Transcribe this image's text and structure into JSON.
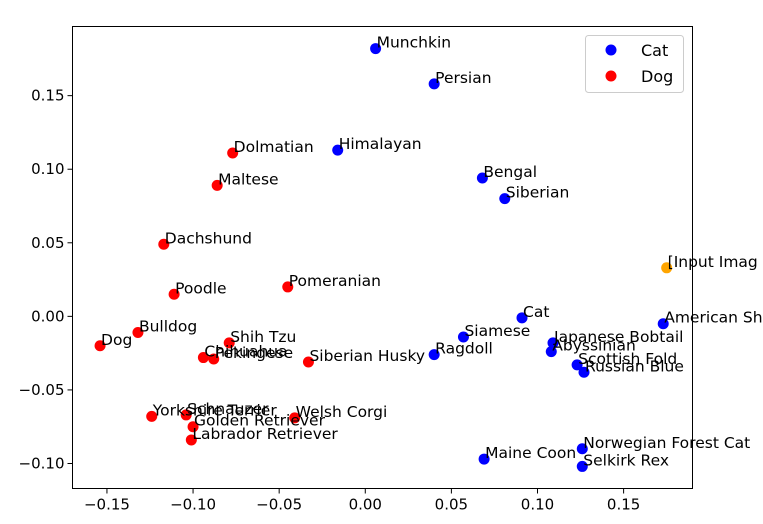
{
  "chart_data": {
    "type": "scatter",
    "title": "",
    "xlabel": "",
    "ylabel": "",
    "xlim": [
      -0.17,
      0.19
    ],
    "ylim": [
      -0.117,
      0.197
    ],
    "grid": false,
    "legend": {
      "position": "top-right",
      "entries": [
        "Cat",
        "Dog"
      ]
    },
    "x_ticks": [
      "−0.15",
      "−0.10",
      "−0.05",
      "0.00",
      "0.05",
      "0.10",
      "0.15"
    ],
    "x_tick_values": [
      -0.15,
      -0.1,
      -0.05,
      0.0,
      0.05,
      0.1,
      0.15
    ],
    "y_ticks": [
      "−0.10",
      "−0.05",
      "0.00",
      "0.05",
      "0.10",
      "0.15"
    ],
    "y_tick_values": [
      -0.1,
      -0.05,
      0.0,
      0.05,
      0.1,
      0.15
    ],
    "series": [
      {
        "name": "Cat",
        "color": "#0000ff",
        "points": [
          {
            "label": "Munchkin",
            "x": 0.006,
            "y": 0.182
          },
          {
            "label": "Persian",
            "x": 0.04,
            "y": 0.158
          },
          {
            "label": "Himalayan",
            "x": -0.016,
            "y": 0.113
          },
          {
            "label": "Bengal",
            "x": 0.068,
            "y": 0.094
          },
          {
            "label": "Siberian",
            "x": 0.081,
            "y": 0.08
          },
          {
            "label": "Cat",
            "x": 0.091,
            "y": -0.001
          },
          {
            "label": "American Sh",
            "x": 0.173,
            "y": -0.005
          },
          {
            "label": "Siamese",
            "x": 0.057,
            "y": -0.014
          },
          {
            "label": "Ragdoll",
            "x": 0.04,
            "y": -0.026
          },
          {
            "label": "Japanese Bobtail",
            "x": 0.109,
            "y": -0.018
          },
          {
            "label": "Abyssinian",
            "x": 0.108,
            "y": -0.024
          },
          {
            "label": "Scottish Fold",
            "x": 0.123,
            "y": -0.033
          },
          {
            "label": "Russian Blue",
            "x": 0.127,
            "y": -0.038
          },
          {
            "label": "Maine Coon",
            "x": 0.069,
            "y": -0.097
          },
          {
            "label": "Norwegian Forest Cat",
            "x": 0.126,
            "y": -0.09
          },
          {
            "label": "Selkirk Rex",
            "x": 0.126,
            "y": -0.102
          }
        ]
      },
      {
        "name": "Dog",
        "color": "#ff0000",
        "points": [
          {
            "label": "Dolmatian",
            "x": -0.077,
            "y": 0.111
          },
          {
            "label": "Maltese",
            "x": -0.086,
            "y": 0.089
          },
          {
            "label": "Dachshund",
            "x": -0.117,
            "y": 0.049
          },
          {
            "label": "Poodle",
            "x": -0.111,
            "y": 0.015
          },
          {
            "label": "Pomeranian",
            "x": -0.045,
            "y": 0.02
          },
          {
            "label": "Bulldog",
            "x": -0.132,
            "y": -0.011
          },
          {
            "label": "Dog",
            "x": -0.154,
            "y": -0.02
          },
          {
            "label": "Shih Tzu",
            "x": -0.079,
            "y": -0.018
          },
          {
            "label": "Chihuahua",
            "x": -0.094,
            "y": -0.028
          },
          {
            "label": "Pekingese",
            "x": -0.088,
            "y": -0.029
          },
          {
            "label": "Siberian Husky",
            "x": -0.033,
            "y": -0.031
          },
          {
            "label": "Yorkshire Terrier",
            "x": -0.124,
            "y": -0.068
          },
          {
            "label": "Schnauzer",
            "x": -0.104,
            "y": -0.067
          },
          {
            "label": "Welsh Corgi",
            "x": -0.041,
            "y": -0.069
          },
          {
            "label": "Golden Retriever",
            "x": -0.1,
            "y": -0.075
          },
          {
            "label": "Labrador Retriever",
            "x": -0.101,
            "y": -0.084
          }
        ]
      },
      {
        "color": "#ffa500",
        "points": [
          {
            "label": "[Input Imag",
            "x": 0.175,
            "y": 0.033
          }
        ]
      }
    ]
  }
}
